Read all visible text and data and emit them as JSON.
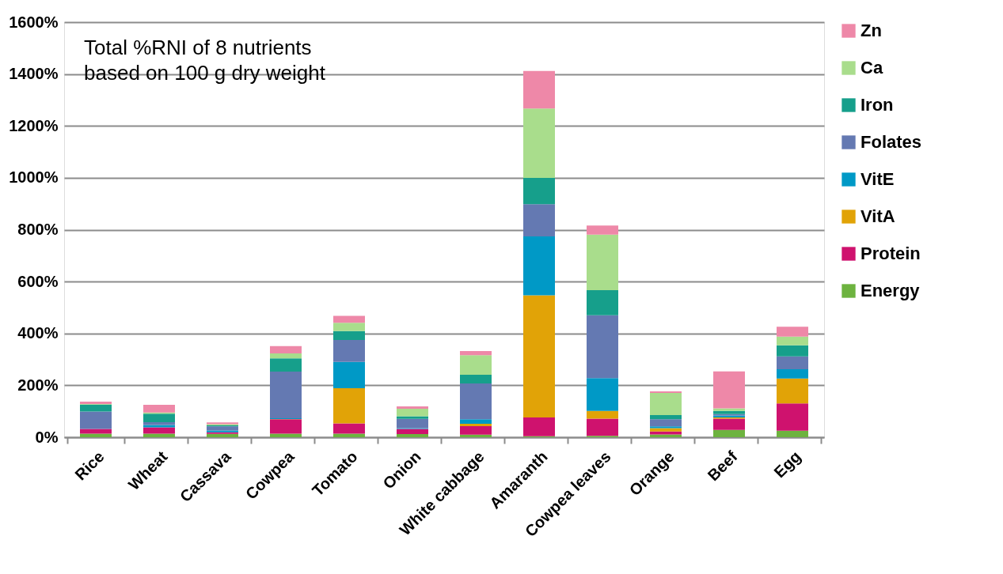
{
  "chart_data": {
    "type": "bar",
    "stacked": true,
    "categories": [
      "Rice",
      "Wheat",
      "Cassava",
      "Cowpea",
      "Tomato",
      "Onion",
      "White cabbage",
      "Amaranth",
      "Cowpea leaves",
      "Orange",
      "Beef",
      "Egg"
    ],
    "series": [
      {
        "name": "Energy",
        "color": "#6db33f",
        "values": [
          14,
          14,
          13,
          14,
          14,
          12,
          10,
          4,
          5,
          11,
          28,
          25
        ]
      },
      {
        "name": "Protein",
        "color": "#cf126e",
        "values": [
          18,
          24,
          6,
          55,
          39,
          20,
          33,
          72,
          67,
          11,
          44,
          105
        ]
      },
      {
        "name": "VitA",
        "color": "#e1a307",
        "values": [
          0,
          null,
          null,
          1,
          136,
          0,
          9,
          471,
          29,
          13,
          4,
          96
        ]
      },
      {
        "name": "VitE",
        "color": "#0099c6",
        "values": [
          0,
          9,
          7,
          3,
          101,
          3,
          17,
          227,
          127,
          7,
          8,
          36
        ]
      },
      {
        "name": "Folates",
        "color": "#6479b2",
        "values": [
          67,
          11,
          16,
          180,
          85,
          36,
          138,
          124,
          242,
          27,
          5,
          50
        ]
      },
      {
        "name": "Iron",
        "color": "#169f8b",
        "values": [
          27,
          33,
          4,
          51,
          34,
          10,
          34,
          102,
          97,
          16,
          12,
          42
        ]
      },
      {
        "name": "Ca",
        "color": "#a9dd8c",
        "values": [
          2,
          4,
          4,
          19,
          32,
          29,
          75,
          267,
          214,
          86,
          10,
          34
        ]
      },
      {
        "name": "Zn",
        "color": "#ee88a8",
        "values": [
          9,
          30,
          7,
          28,
          27,
          9,
          16,
          145,
          35,
          6,
          143,
          38
        ]
      }
    ],
    "ylim": [
      0,
      1600
    ],
    "yticks": [
      {
        "value": 0,
        "label": "0%"
      },
      {
        "value": 200,
        "label": "200%"
      },
      {
        "value": 400,
        "label": "400%"
      },
      {
        "value": 600,
        "label": "600%"
      },
      {
        "value": 800,
        "label": "800%"
      },
      {
        "value": 1000,
        "label": "1000%"
      },
      {
        "value": 1200,
        "label": "1200%"
      },
      {
        "value": 1400,
        "label": "1400%"
      },
      {
        "value": 1600,
        "label": "1600%"
      }
    ],
    "grid": "y",
    "legend": "right",
    "annotations": [
      "Total %RNI of 8 nutrients\nbased on 100 g dry weight"
    ]
  }
}
